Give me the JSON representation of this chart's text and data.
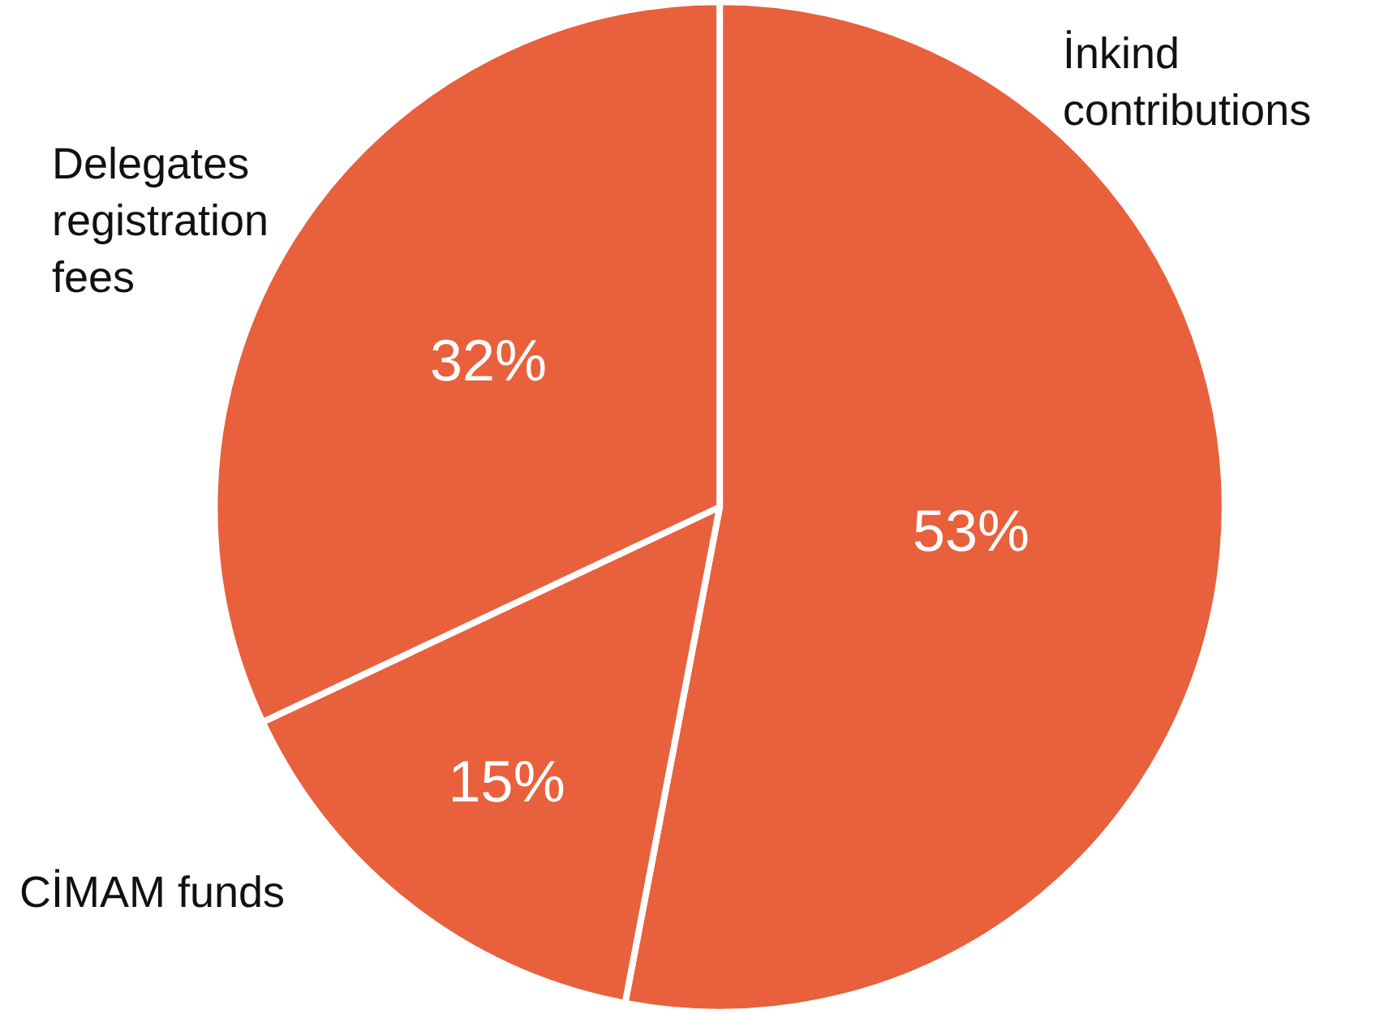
{
  "chart_data": {
    "type": "pie",
    "categories": [
      "İnkind contributions",
      "CİMAM funds",
      "Delegates registration fees"
    ],
    "values": [
      53,
      15,
      32
    ],
    "value_labels": [
      "53%",
      "15%",
      "32%"
    ],
    "colors": [
      "#e8603c",
      "#e8603c",
      "#e8603c"
    ],
    "legend": false
  }
}
